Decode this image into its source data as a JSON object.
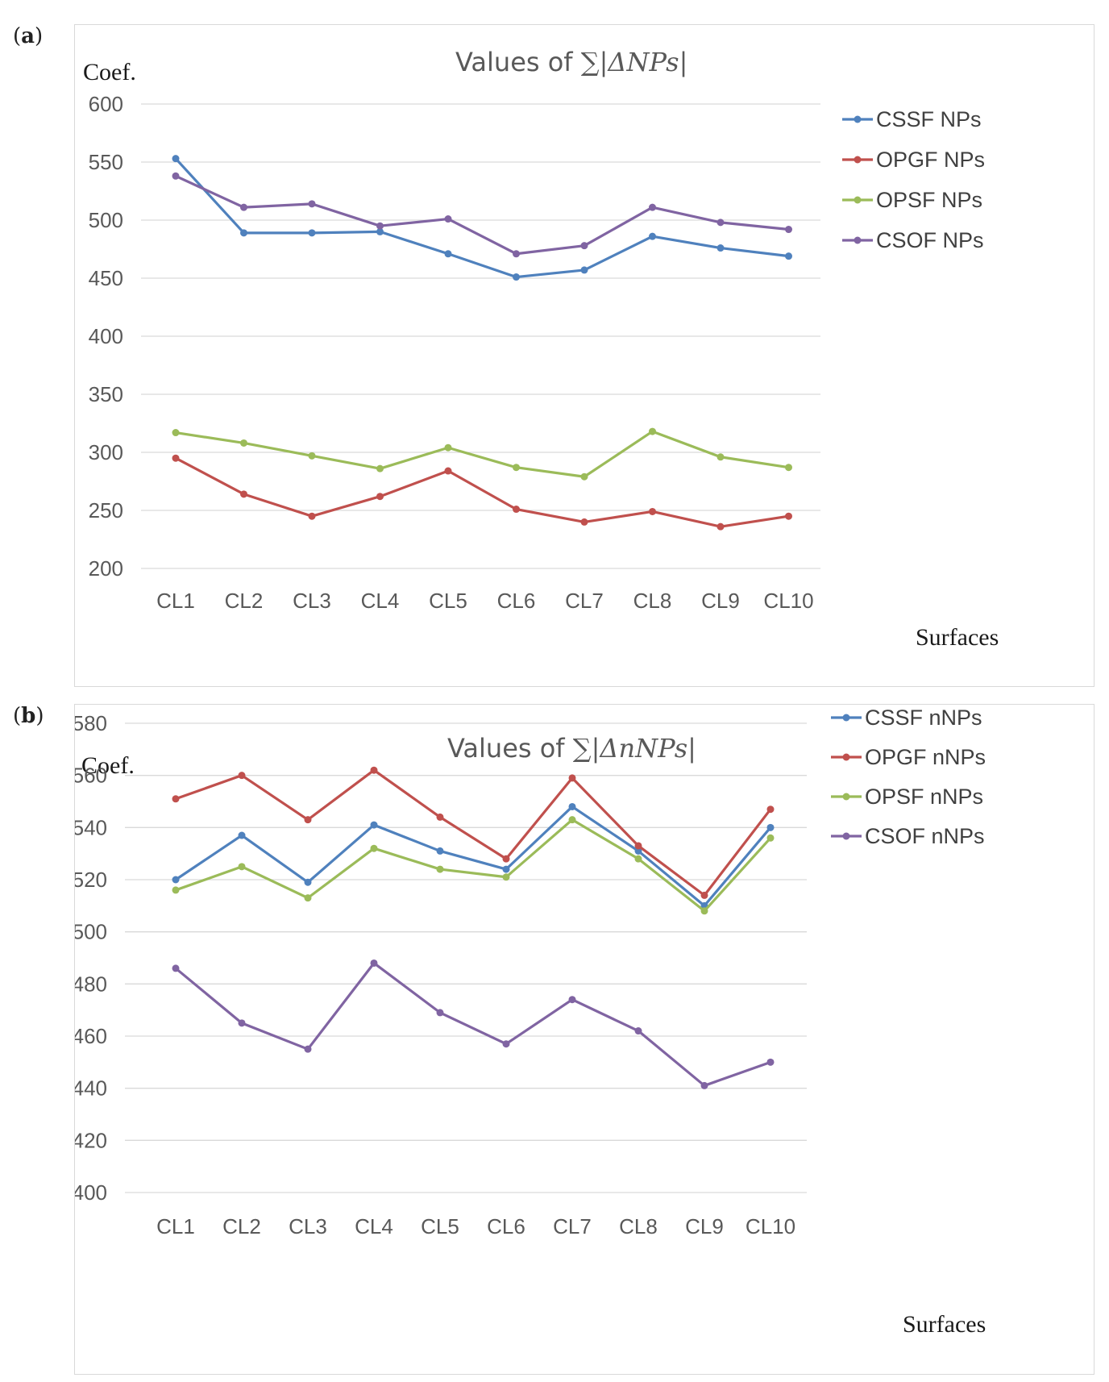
{
  "panels": [
    {
      "label_open": "(",
      "label_letter": "a",
      "label_close": ")"
    },
    {
      "label_open": "(",
      "label_letter": "b",
      "label_close": ")"
    }
  ],
  "chart_data": [
    {
      "type": "line",
      "title_prefix": "Values of ",
      "title_math": "∑|ΔNPs|",
      "ylabel": "Coef.",
      "xlabel": "Surfaces",
      "ylim": [
        200,
        600
      ],
      "yticks": [
        200,
        250,
        300,
        350,
        400,
        450,
        500,
        550,
        600
      ],
      "grid": true,
      "legend_position": "right",
      "categories": [
        "CL1",
        "CL2",
        "CL3",
        "CL4",
        "CL5",
        "CL6",
        "CL7",
        "CL8",
        "CL9",
        "CL10"
      ],
      "series": [
        {
          "name": "CSSF NPs",
          "color": "#4f81bd",
          "values": [
            553,
            489,
            489,
            490,
            471,
            451,
            457,
            486,
            476,
            469
          ]
        },
        {
          "name": "OPGF NPs",
          "color": "#c0504d",
          "values": [
            295,
            264,
            245,
            262,
            284,
            251,
            240,
            249,
            236,
            245
          ]
        },
        {
          "name": "OPSF NPs",
          "color": "#9bbb59",
          "values": [
            317,
            308,
            297,
            286,
            304,
            287,
            279,
            318,
            296,
            287
          ]
        },
        {
          "name": "CSOF NPs",
          "color": "#8064a2",
          "values": [
            538,
            511,
            514,
            495,
            501,
            471,
            478,
            511,
            498,
            492
          ]
        }
      ]
    },
    {
      "type": "line",
      "title_prefix": "Values of ",
      "title_math": "∑|ΔnNPs|",
      "ylabel": "Coef.",
      "xlabel": "Surfaces",
      "ylim": [
        400,
        580
      ],
      "yticks": [
        400,
        420,
        440,
        460,
        480,
        500,
        520,
        540,
        560,
        580
      ],
      "grid": true,
      "legend_position": "right",
      "categories": [
        "CL1",
        "CL2",
        "CL3",
        "CL4",
        "CL5",
        "CL6",
        "CL7",
        "CL8",
        "CL9",
        "CL10"
      ],
      "series": [
        {
          "name": "CSSF nNPs",
          "color": "#4f81bd",
          "values": [
            520,
            537,
            519,
            541,
            531,
            524,
            548,
            531,
            510,
            540
          ]
        },
        {
          "name": "OPGF nNPs",
          "color": "#c0504d",
          "values": [
            551,
            560,
            543,
            562,
            544,
            528,
            559,
            533,
            514,
            547
          ]
        },
        {
          "name": "OPSF nNPs",
          "color": "#9bbb59",
          "values": [
            516,
            525,
            513,
            532,
            524,
            521,
            543,
            528,
            508,
            536
          ]
        },
        {
          "name": "CSOF nNPs",
          "color": "#8064a2",
          "values": [
            486,
            465,
            455,
            488,
            469,
            457,
            474,
            462,
            441,
            450
          ]
        }
      ]
    }
  ]
}
